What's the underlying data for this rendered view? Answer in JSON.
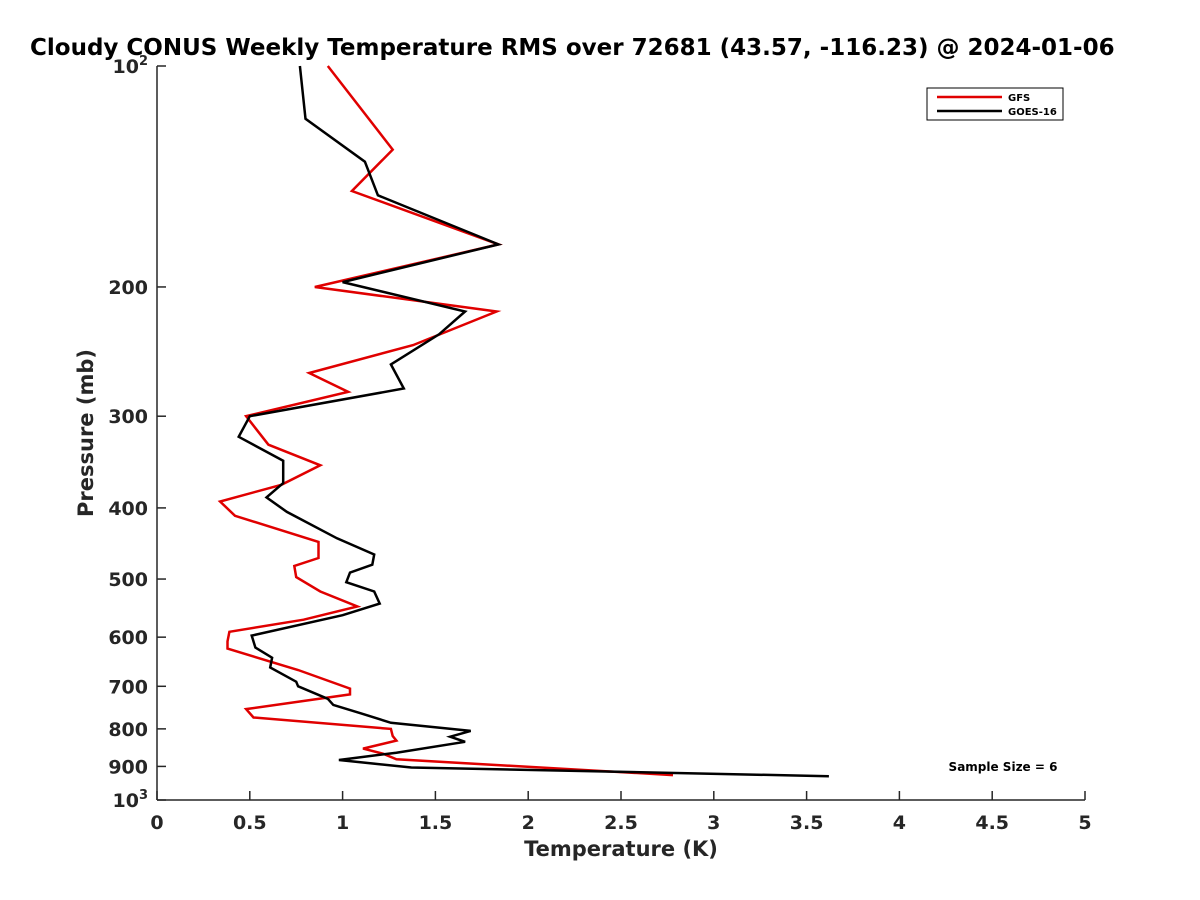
{
  "chart_data": {
    "type": "line",
    "title": "Cloudy CONUS Weekly Temperature RMS over 72681 (43.57, -116.23) @ 2024-01-06",
    "xlabel": "Temperature (K)",
    "ylabel": "Pressure (mb)",
    "xlim": [
      0,
      5
    ],
    "ylim": [
      100,
      1000
    ],
    "y_scale": "log",
    "y_reversed": true,
    "grid": false,
    "legend_position": "top-right",
    "x_ticks": [
      "0",
      "0.5",
      "1",
      "1.5",
      "2",
      "2.5",
      "3",
      "3.5",
      "4",
      "4.5",
      "5"
    ],
    "y_ticks": [
      {
        "value": 100,
        "label": "10",
        "sup": "2"
      },
      {
        "value": 200,
        "label": "200",
        "sup": ""
      },
      {
        "value": 300,
        "label": "300",
        "sup": ""
      },
      {
        "value": 400,
        "label": "400",
        "sup": ""
      },
      {
        "value": 500,
        "label": "500",
        "sup": ""
      },
      {
        "value": 600,
        "label": "600",
        "sup": ""
      },
      {
        "value": 700,
        "label": "700",
        "sup": ""
      },
      {
        "value": 800,
        "label": "800",
        "sup": ""
      },
      {
        "value": 900,
        "label": "900",
        "sup": ""
      },
      {
        "value": 1000,
        "label": "10",
        "sup": "3"
      }
    ],
    "series": [
      {
        "name": "GFS",
        "color": "#e00000",
        "points": [
          [
            0.92,
            100
          ],
          [
            1.27,
            130
          ],
          [
            1.05,
            148
          ],
          [
            1.84,
            175
          ],
          [
            0.85,
            200
          ],
          [
            1.83,
            216
          ],
          [
            1.38,
            240
          ],
          [
            0.82,
            262
          ],
          [
            1.03,
            278
          ],
          [
            0.48,
            300
          ],
          [
            0.6,
            328
          ],
          [
            0.88,
            350
          ],
          [
            0.67,
            372
          ],
          [
            0.34,
            392
          ],
          [
            0.42,
            410
          ],
          [
            0.87,
            445
          ],
          [
            0.87,
            468
          ],
          [
            0.74,
            480
          ],
          [
            0.75,
            497
          ],
          [
            0.88,
            520
          ],
          [
            1.08,
            545
          ],
          [
            0.79,
            568
          ],
          [
            0.39,
            590
          ],
          [
            0.38,
            608
          ],
          [
            0.38,
            622
          ],
          [
            0.76,
            665
          ],
          [
            1.04,
            705
          ],
          [
            1.04,
            718
          ],
          [
            0.48,
            752
          ],
          [
            0.52,
            772
          ],
          [
            1.26,
            800
          ],
          [
            1.27,
            818
          ],
          [
            1.29,
            830
          ],
          [
            1.11,
            851
          ],
          [
            1.22,
            865
          ],
          [
            1.29,
            880
          ],
          [
            2.78,
            925
          ]
        ]
      },
      {
        "name": "GOES-16",
        "color": "#000000",
        "points": [
          [
            0.77,
            100
          ],
          [
            0.8,
            118
          ],
          [
            1.12,
            135
          ],
          [
            1.19,
            150
          ],
          [
            1.84,
            175
          ],
          [
            1.0,
            197
          ],
          [
            1.66,
            216
          ],
          [
            1.52,
            232
          ],
          [
            1.26,
            255
          ],
          [
            1.33,
            275
          ],
          [
            0.5,
            300
          ],
          [
            0.44,
            320
          ],
          [
            0.68,
            345
          ],
          [
            0.68,
            370
          ],
          [
            0.59,
            387
          ],
          [
            0.7,
            405
          ],
          [
            0.97,
            440
          ],
          [
            1.17,
            463
          ],
          [
            1.16,
            478
          ],
          [
            1.04,
            490
          ],
          [
            1.02,
            505
          ],
          [
            1.17,
            520
          ],
          [
            1.2,
            540
          ],
          [
            1.0,
            560
          ],
          [
            0.51,
            597
          ],
          [
            0.53,
            620
          ],
          [
            0.62,
            640
          ],
          [
            0.61,
            660
          ],
          [
            0.75,
            690
          ],
          [
            0.76,
            700
          ],
          [
            0.92,
            728
          ],
          [
            0.95,
            742
          ],
          [
            1.1,
            762
          ],
          [
            1.26,
            785
          ],
          [
            1.69,
            805
          ],
          [
            1.58,
            820
          ],
          [
            1.66,
            833
          ],
          [
            1.29,
            862
          ],
          [
            0.98,
            882
          ],
          [
            1.37,
            903
          ],
          [
            3.62,
            928
          ]
        ]
      }
    ],
    "annotation": "Sample Size = 6"
  }
}
